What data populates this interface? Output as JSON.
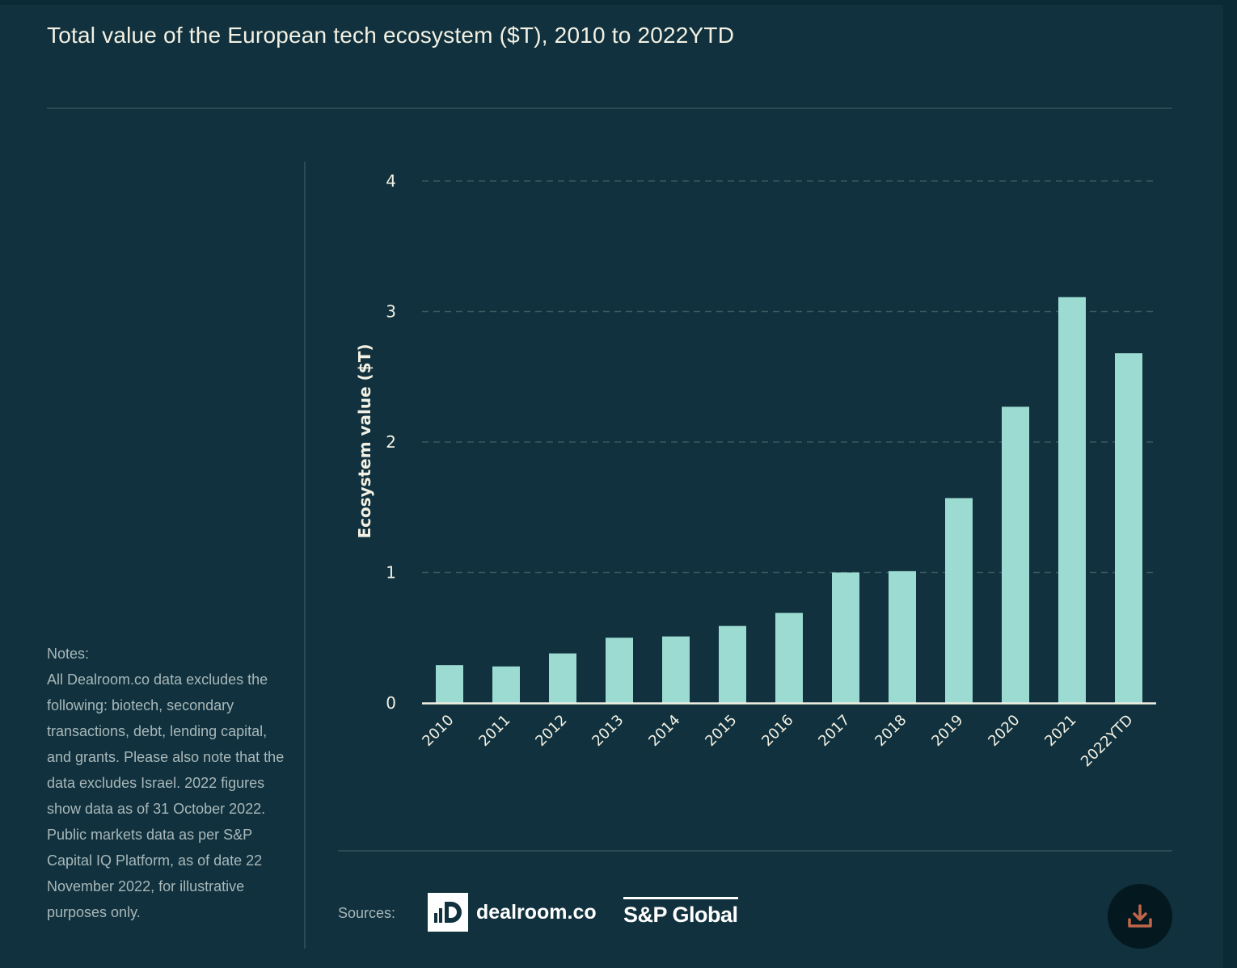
{
  "title": "Total value of the European tech ecosystem ($T), 2010 to 2022YTD",
  "notes": {
    "heading": "Notes:",
    "text": "All Dealroom.co data excludes the following: biotech, secondary transactions, debt, lending capital, and grants. Please also note that the data excludes Israel. 2022 figures show data as of 31 October 2022. Public markets data as per S&P Capital IQ Platform, as of date 22 November 2022, for illustrative purposes only."
  },
  "footer": {
    "sources_label": "Sources:",
    "source_1": "dealroom.co",
    "source_2": "S&P Global",
    "download_icon": "download-icon"
  },
  "colors": {
    "background": "#10313d",
    "bar": "#9cdbd1",
    "text": "#f3f1e4",
    "muted": "#a9b8ba",
    "download_accent": "#c0654a"
  },
  "chart_data": {
    "type": "bar",
    "title": "Total value of the European tech ecosystem ($T), 2010 to 2022YTD",
    "xlabel": "",
    "ylabel": "Ecosystem value ($T)",
    "ylim": [
      0,
      4
    ],
    "yticks": [
      0,
      1,
      2,
      3,
      4
    ],
    "grid": true,
    "legend": "none",
    "categories": [
      "2010",
      "2011",
      "2012",
      "2013",
      "2014",
      "2015",
      "2016",
      "2017",
      "2018",
      "2019",
      "2020",
      "2021",
      "2022YTD"
    ],
    "values": [
      0.29,
      0.28,
      0.38,
      0.5,
      0.51,
      0.59,
      0.69,
      1.0,
      1.01,
      1.57,
      2.27,
      3.11,
      2.68
    ]
  }
}
